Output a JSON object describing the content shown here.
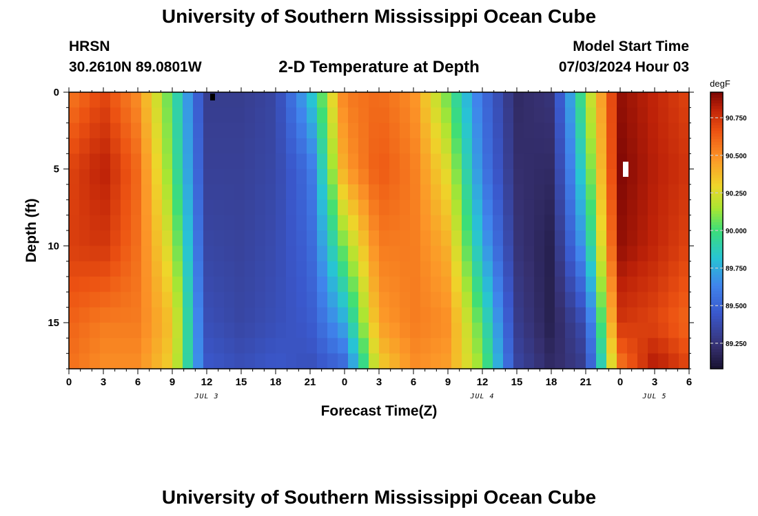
{
  "header": {
    "title": "University of Southern Mississippi Ocean Cube",
    "station": "HRSN",
    "latlon": "30.2610N  89.0801W",
    "subtitle": "2-D Temperature at Depth",
    "model_label": "Model Start Time",
    "model_date": "07/03/2024 Hour 03"
  },
  "footer": {
    "title": "University of Southern Mississippi Ocean Cube"
  },
  "chart_data": {
    "type": "heatmap",
    "title": "2-D Temperature at Depth",
    "xlabel": "Forecast Time(Z)",
    "ylabel": "Depth (ft)",
    "xlim": [
      0,
      54
    ],
    "ylim": [
      0,
      18
    ],
    "x_ticks": [
      {
        "value": 0,
        "label": "0"
      },
      {
        "value": 3,
        "label": "3"
      },
      {
        "value": 6,
        "label": "6"
      },
      {
        "value": 9,
        "label": "9"
      },
      {
        "value": 12,
        "label": "12"
      },
      {
        "value": 15,
        "label": "15"
      },
      {
        "value": 18,
        "label": "18"
      },
      {
        "value": 21,
        "label": "21"
      },
      {
        "value": 24,
        "label": "0"
      },
      {
        "value": 27,
        "label": "3"
      },
      {
        "value": 30,
        "label": "6"
      },
      {
        "value": 33,
        "label": "9"
      },
      {
        "value": 36,
        "label": "12"
      },
      {
        "value": 39,
        "label": "15"
      },
      {
        "value": 42,
        "label": "18"
      },
      {
        "value": 45,
        "label": "21"
      },
      {
        "value": 48,
        "label": "0"
      },
      {
        "value": 51,
        "label": "3"
      },
      {
        "value": 54,
        "label": "6"
      }
    ],
    "day_labels": [
      {
        "value": 12,
        "label": "JUL 3"
      },
      {
        "value": 36,
        "label": "JUL 4"
      },
      {
        "value": 51,
        "label": "JUL 5"
      }
    ],
    "y_ticks": [
      0,
      5,
      10,
      15
    ],
    "colorbar": {
      "units": "degF",
      "min": 89.08,
      "max": 90.92,
      "ticks": [
        "89.250",
        "89.500",
        "89.750",
        "90.000",
        "90.250",
        "90.500",
        "90.750"
      ]
    },
    "profile_hours": [
      0,
      3,
      6,
      9,
      12,
      15,
      18,
      21,
      24,
      27,
      30,
      33,
      36,
      39,
      42,
      45,
      48,
      51,
      54
    ],
    "profile_depths": [
      0,
      5,
      10,
      15,
      18
    ],
    "temperature_degF": [
      [
        90.55,
        90.7,
        90.72,
        90.62,
        90.58
      ],
      [
        90.7,
        90.82,
        90.75,
        90.55,
        90.5
      ],
      [
        90.5,
        90.6,
        90.58,
        90.55,
        90.5
      ],
      [
        90.0,
        90.05,
        90.2,
        90.35,
        90.3
      ],
      [
        89.3,
        89.32,
        89.35,
        89.4,
        89.45
      ],
      [
        89.3,
        89.32,
        89.33,
        89.35,
        89.4
      ],
      [
        89.35,
        89.36,
        89.38,
        89.4,
        89.45
      ],
      [
        89.8,
        89.55,
        89.5,
        89.45,
        89.4
      ],
      [
        90.55,
        90.45,
        90.1,
        89.75,
        89.5
      ],
      [
        90.6,
        90.65,
        90.55,
        90.45,
        90.3
      ],
      [
        90.5,
        90.55,
        90.55,
        90.55,
        90.5
      ],
      [
        90.05,
        90.25,
        90.4,
        90.5,
        90.45
      ],
      [
        89.55,
        89.6,
        89.75,
        90.0,
        90.1
      ],
      [
        89.2,
        89.22,
        89.25,
        89.3,
        89.35
      ],
      [
        89.25,
        89.2,
        89.15,
        89.15,
        89.2
      ],
      [
        90.1,
        89.95,
        89.75,
        89.4,
        89.3
      ],
      [
        90.88,
        90.91,
        90.88,
        90.75,
        90.55
      ],
      [
        90.8,
        90.82,
        90.8,
        90.7,
        90.85
      ],
      [
        90.7,
        90.75,
        90.7,
        90.6,
        90.7
      ]
    ]
  }
}
